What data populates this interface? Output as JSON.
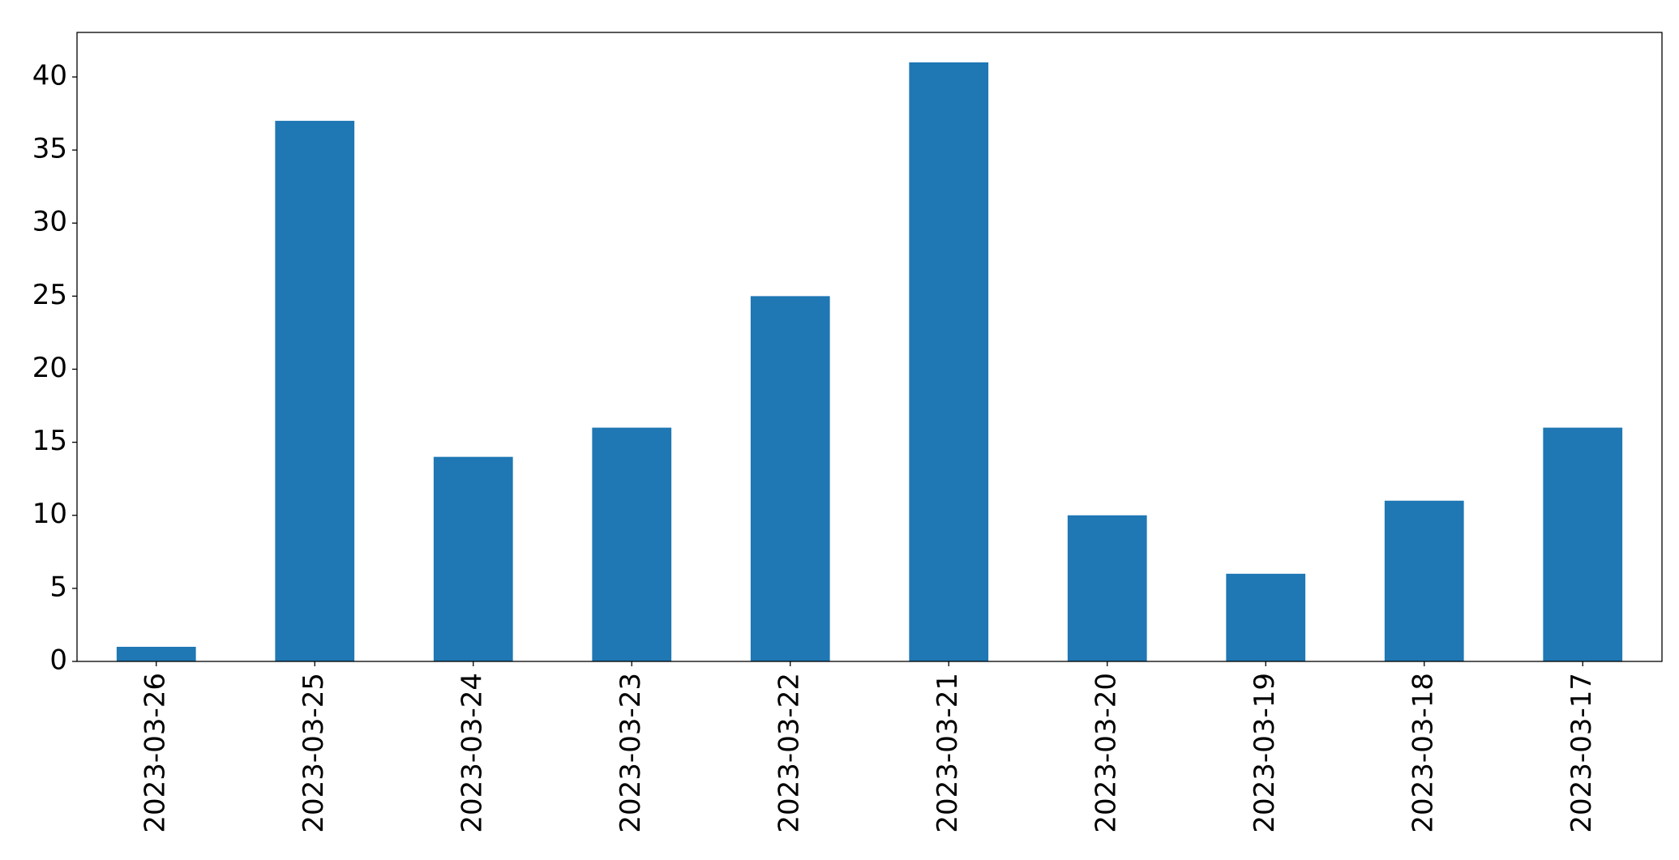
{
  "chart_data": {
    "type": "bar",
    "categories": [
      "2023-03-26",
      "2023-03-25",
      "2023-03-24",
      "2023-03-23",
      "2023-03-22",
      "2023-03-21",
      "2023-03-20",
      "2023-03-19",
      "2023-03-18",
      "2023-03-17"
    ],
    "values": [
      1,
      37,
      14,
      16,
      25,
      41,
      10,
      6,
      11,
      16
    ],
    "color": "#1f77b4",
    "ylim": [
      0,
      43.05
    ],
    "yticks": [
      0,
      5,
      10,
      15,
      20,
      25,
      30,
      35,
      40
    ],
    "grid": false
  }
}
